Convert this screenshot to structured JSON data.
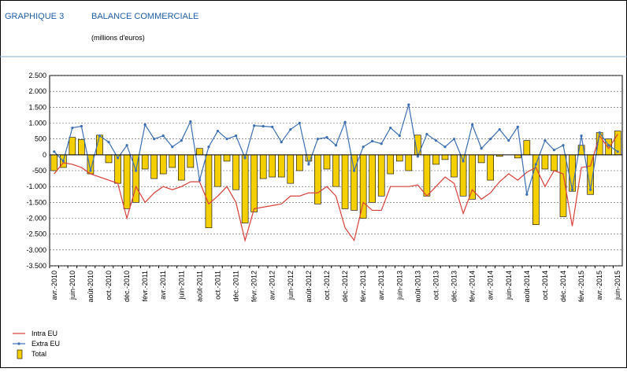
{
  "header": {
    "label": "GRAPHIQUE 3",
    "title": "BALANCE COMMERCIALE",
    "subtitle": "(millions d'euros)"
  },
  "chart_data": {
    "type": "bar",
    "categories": [
      "avr.-2010",
      null,
      "juin-2010",
      null,
      "août-2010",
      null,
      "oct.-2010",
      null,
      "déc.-2010",
      null,
      "févr.-2011",
      null,
      "avr.-2011",
      null,
      "juin-2011",
      null,
      "août-2011",
      null,
      "oct.-2011",
      null,
      "déc.-2011",
      null,
      "févr.-2012",
      null,
      "avr.-2012",
      null,
      "juin-2012",
      null,
      "août-2012",
      null,
      "oct.-2012",
      null,
      "déc.-2012",
      null,
      "févr.-2013",
      null,
      "avr.-2013",
      null,
      "juin-2013",
      null,
      "août-2013",
      null,
      "oct.-2013",
      null,
      "déc.-2013",
      null,
      "févr.-2014",
      null,
      "avr.-2014",
      null,
      "juin-2014",
      null,
      "août-2014",
      null,
      "oct.-2014",
      null,
      "déc.-2014",
      null,
      "févr.-2015",
      null,
      "avr.-2015",
      null,
      "juin-2015"
    ],
    "ylim": [
      -3500,
      2500
    ],
    "yticks": [
      {
        "value": 2500,
        "label": "2.500"
      },
      {
        "value": 2000,
        "label": "2.000"
      },
      {
        "value": 1500,
        "label": "1.500"
      },
      {
        "value": 1000,
        "label": "1.000"
      },
      {
        "value": 500,
        "label": "500"
      },
      {
        "value": 0,
        "label": "0"
      },
      {
        "value": -500,
        "label": "-500"
      },
      {
        "value": -1000,
        "label": "-1.000"
      },
      {
        "value": -1500,
        "label": "-1.500"
      },
      {
        "value": -2000,
        "label": "-2.000"
      },
      {
        "value": -2500,
        "label": "-2.500"
      },
      {
        "value": -3000,
        "label": "-3.000"
      },
      {
        "value": -3500,
        "label": "-3.500"
      }
    ],
    "grid": true,
    "series": [
      {
        "name": "Intra EU",
        "type": "line",
        "color": "#d9403a",
        "values": [
          -600,
          -250,
          -300,
          -400,
          -600,
          -700,
          -800,
          -900,
          -2000,
          -1000,
          -1500,
          -1200,
          -1000,
          -1100,
          -1000,
          -850,
          -850,
          -1550,
          -1300,
          -1000,
          -1500,
          -2700,
          -1700,
          -1650,
          -1600,
          -1550,
          -1300,
          -1300,
          -1200,
          -1200,
          -1000,
          -1300,
          -2300,
          -2700,
          -1500,
          -1750,
          -1750,
          -1000,
          -1000,
          -1000,
          -950,
          -1300,
          -1000,
          -700,
          -900,
          -1850,
          -1100,
          -1400,
          -1200,
          -850,
          -600,
          -800,
          -550,
          -400,
          -1000,
          -500,
          -600,
          -2250,
          -400,
          -350,
          600,
          200,
          650
        ]
      },
      {
        "name": "Extra EU",
        "type": "line",
        "marker": true,
        "color": "#3d6fb5",
        "values": [
          100,
          -200,
          850,
          900,
          -500,
          600,
          400,
          -100,
          300,
          -500,
          950,
          500,
          600,
          250,
          450,
          1050,
          -800,
          250,
          750,
          500,
          600,
          -100,
          920,
          900,
          880,
          400,
          800,
          1000,
          -300,
          500,
          550,
          300,
          1030,
          -500,
          250,
          430,
          350,
          850,
          600,
          1580,
          -50,
          650,
          450,
          250,
          500,
          -200,
          950,
          200,
          500,
          800,
          450,
          880,
          -1250,
          -300,
          450,
          150,
          300,
          -1100,
          600,
          -1100,
          700,
          300,
          100
        ]
      },
      {
        "name": "Total",
        "type": "bar",
        "color": "#f5d000",
        "values": [
          -500,
          -400,
          550,
          480,
          -600,
          620,
          -250,
          -900,
          -1700,
          -1500,
          -450,
          -750,
          -600,
          -400,
          -800,
          -400,
          200,
          -2300,
          -1000,
          -200,
          -1100,
          -2150,
          -1800,
          -750,
          -700,
          -700,
          -900,
          -500,
          -200,
          -1550,
          -450,
          -1000,
          -1700,
          -1750,
          -2000,
          -1500,
          -1300,
          -600,
          -200,
          -500,
          620,
          -1300,
          -300,
          -150,
          -700,
          -1300,
          -1400,
          -250,
          -800,
          -50,
          0,
          -100,
          450,
          -2200,
          -450,
          -500,
          -1950,
          -1150,
          300,
          -1250,
          700,
          500,
          750
        ]
      }
    ]
  }
}
